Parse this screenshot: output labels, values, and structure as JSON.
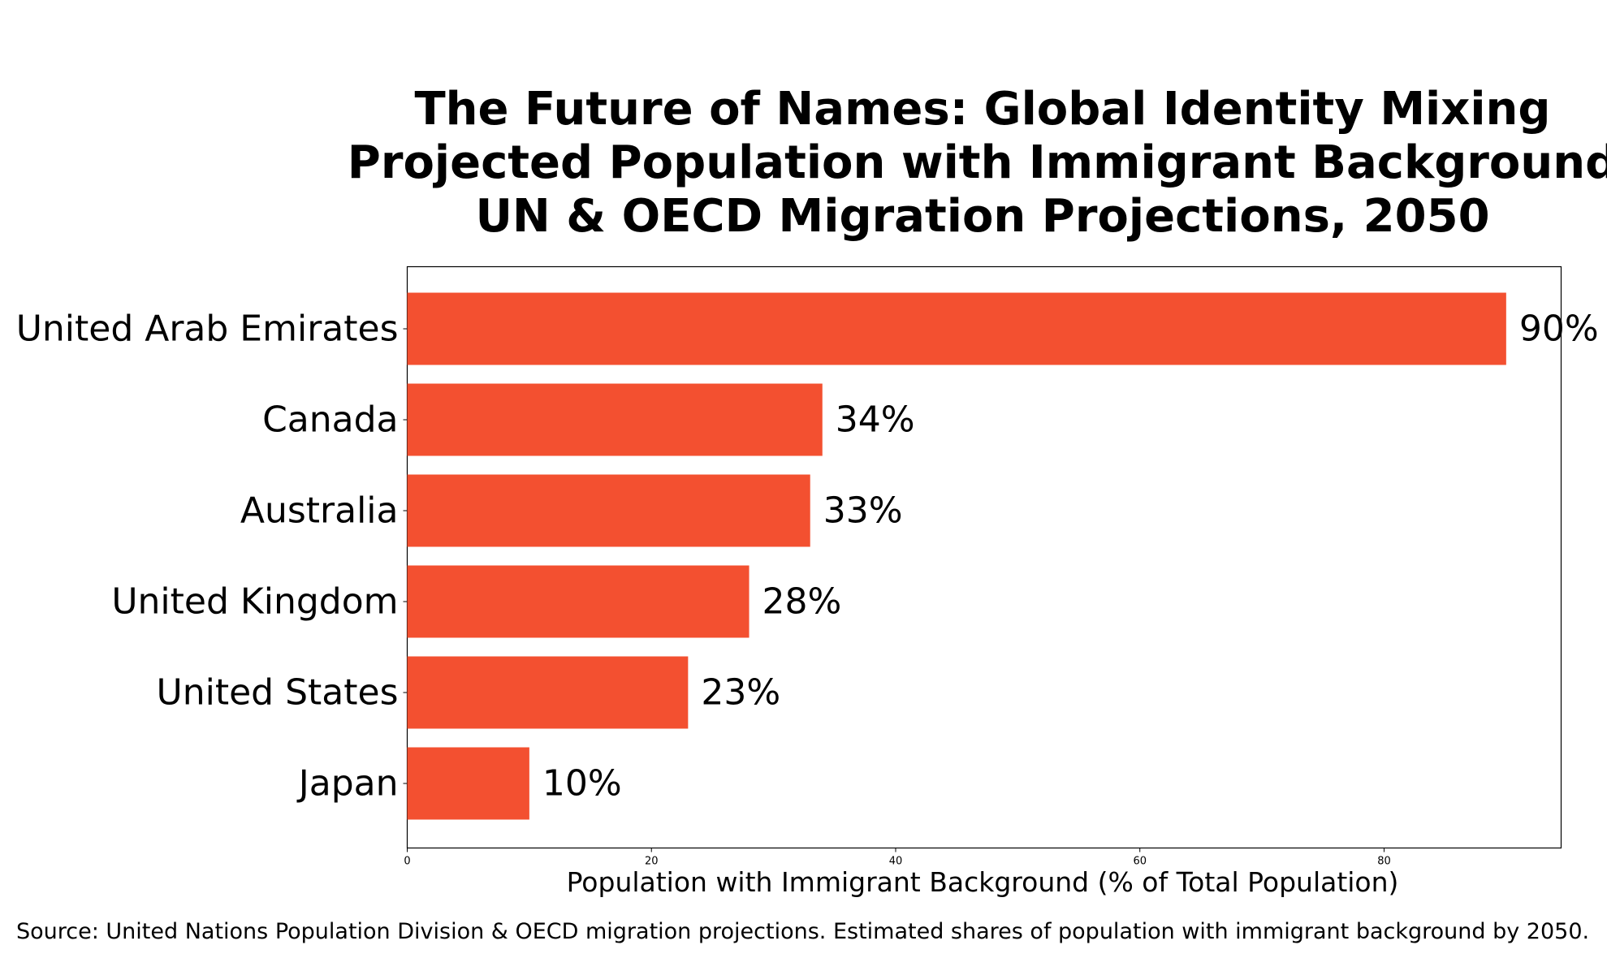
{
  "chart_data": {
    "type": "bar",
    "orientation": "horizontal",
    "title_lines": [
      "The Future of Names: Global Identity Mixing",
      "Projected Population with Immigrant Background",
      "UN & OECD Migration Projections, 2050"
    ],
    "categories": [
      "United Arab Emirates",
      "Canada",
      "Australia",
      "United Kingdom",
      "United States",
      "Japan"
    ],
    "values": [
      90,
      34,
      33,
      28,
      23,
      10
    ],
    "value_labels": [
      "90%",
      "34%",
      "33%",
      "28%",
      "23%",
      "10%"
    ],
    "xlabel": "Population with Immigrant Background (% of Total Population)",
    "ylabel": "",
    "xlim": [
      0,
      94.5
    ],
    "xticks": [
      0,
      20,
      40,
      60,
      80
    ],
    "bar_color": "#f35030",
    "grid": false,
    "source": "Source: United Nations Population Division & OECD migration projections. Estimated shares of population with immigrant background by 2050."
  }
}
